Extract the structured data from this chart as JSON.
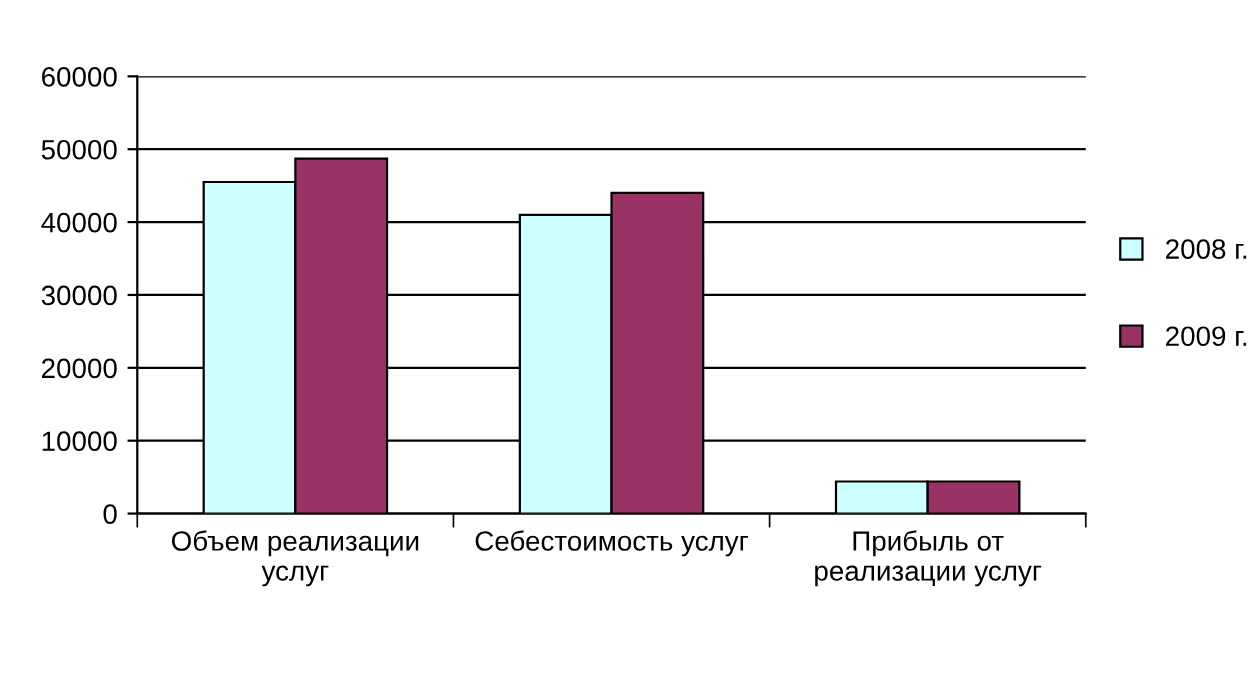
{
  "chart_data": {
    "type": "bar",
    "categories": [
      "Объем реализации\nуслуг",
      "Себестоимость услуг",
      "Прибыль от\nреализации услуг"
    ],
    "series": [
      {
        "name": "2008 г.",
        "color": "#ccffff",
        "values": [
          45500,
          41000,
          4400
        ]
      },
      {
        "name": "2009 г.",
        "color": "#993366",
        "values": [
          48700,
          44000,
          4400
        ]
      }
    ],
    "ylim": [
      0,
      60000
    ],
    "yticks": [
      0,
      10000,
      20000,
      30000,
      40000,
      50000,
      60000
    ],
    "grid": "y",
    "legend": "right"
  }
}
